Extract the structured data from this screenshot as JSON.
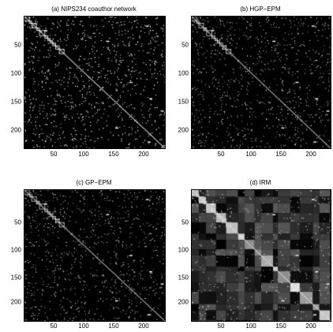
{
  "chart_data": [
    {
      "type": "heatmap",
      "title": "(a) NIPS234 coauthor network",
      "matrix_size": 234,
      "colormap": "grayscale",
      "xticks": [
        "50",
        "100",
        "150",
        "200"
      ],
      "yticks": [
        "50",
        "100",
        "150",
        "200"
      ],
      "xlim": [
        1,
        234
      ],
      "ylim": [
        234,
        1
      ],
      "style": "sparse"
    },
    {
      "type": "heatmap",
      "title": "(b) HGP−EPM",
      "matrix_size": 234,
      "colormap": "grayscale",
      "xticks": [
        "50",
        "100",
        "150",
        "200"
      ],
      "yticks": [
        "50",
        "100",
        "150",
        "200"
      ],
      "xlim": [
        1,
        234
      ],
      "ylim": [
        234,
        1
      ],
      "style": "sparse-soft"
    },
    {
      "type": "heatmap",
      "title": "(c) GP−EPM",
      "matrix_size": 234,
      "colormap": "grayscale",
      "xticks": [
        "50",
        "100",
        "150",
        "200"
      ],
      "yticks": [
        "50",
        "100",
        "150",
        "200"
      ],
      "xlim": [
        1,
        234
      ],
      "ylim": [
        234,
        1
      ],
      "style": "sparse-soft"
    },
    {
      "type": "heatmap",
      "title": "(d) IRM",
      "matrix_size": 234,
      "colormap": "grayscale",
      "xticks": [
        "50",
        "100",
        "150",
        "200"
      ],
      "yticks": [
        "50",
        "100",
        "150",
        "200"
      ],
      "xlim": [
        1,
        234
      ],
      "ylim": [
        234,
        1
      ],
      "style": "block"
    }
  ]
}
